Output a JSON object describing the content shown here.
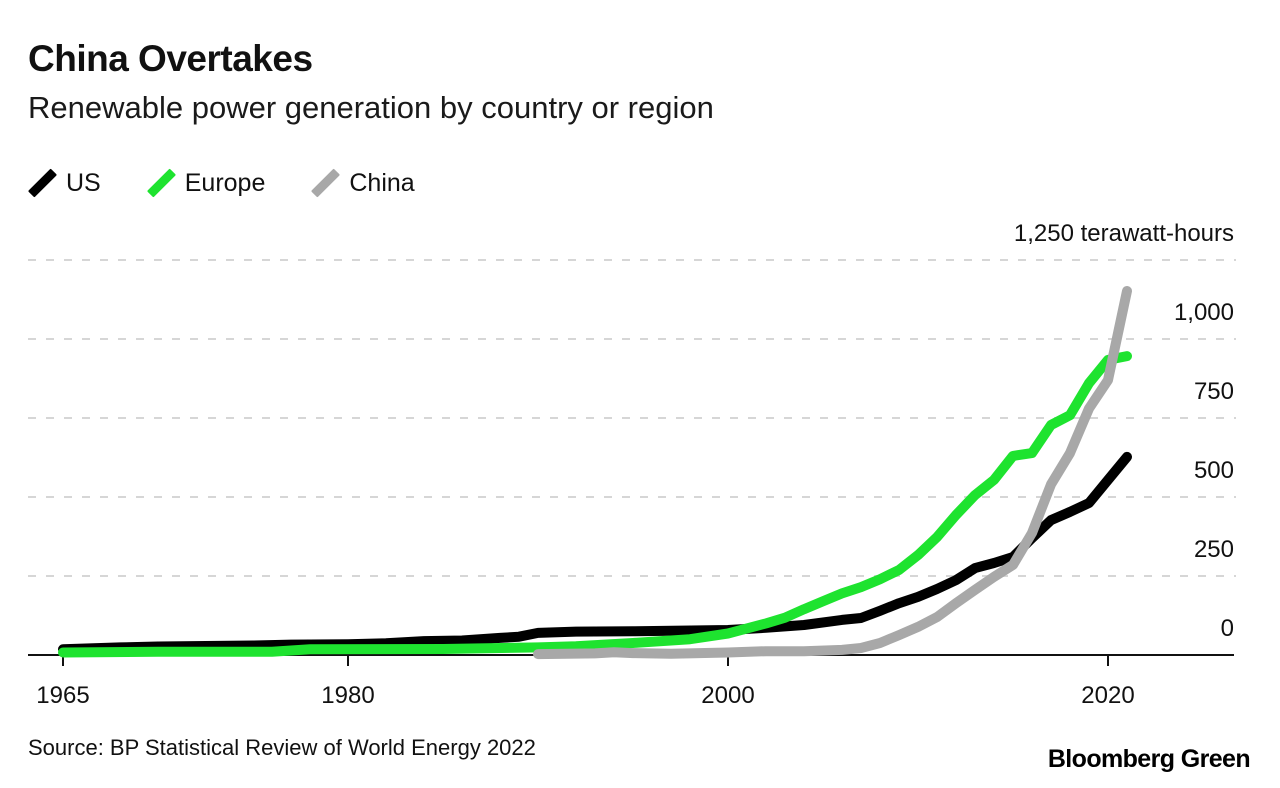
{
  "header": {
    "title": "China Overtakes",
    "subtitle": "Renewable power generation by country or region"
  },
  "legend": [
    {
      "label": "US",
      "color": "#000000"
    },
    {
      "label": "Europe",
      "color": "#1ee32f"
    },
    {
      "label": "China",
      "color": "#a8a8a8"
    }
  ],
  "footer": {
    "source": "Source: BP Statistical Review of World Energy 2022",
    "brand": "Bloomberg Green"
  },
  "chart_data": {
    "type": "line",
    "title": "China Overtakes",
    "subtitle": "Renewable power generation by country or region",
    "xlabel": "",
    "ylabel": "terawatt-hours",
    "unit_label": "1,250 terawatt-hours",
    "xlim": [
      1965,
      2021
    ],
    "ylim": [
      0,
      1250
    ],
    "x_ticks": [
      1965,
      1980,
      2000,
      2020
    ],
    "x_tick_labels": [
      "1965",
      "1980",
      "2000",
      "2020"
    ],
    "y_ticks": [
      0,
      250,
      500,
      750,
      1000,
      1250
    ],
    "y_tick_labels": [
      "0",
      "250",
      "500",
      "750",
      "1,000",
      "1,250 terawatt-hours"
    ],
    "grid": "horizontal dashed",
    "legend_position": "top-left",
    "y_axis_position": "right",
    "series": [
      {
        "name": "US",
        "color": "#000000",
        "points": [
          [
            1965,
            18
          ],
          [
            1968,
            24
          ],
          [
            1970,
            27
          ],
          [
            1975,
            30
          ],
          [
            1977,
            33
          ],
          [
            1980,
            34
          ],
          [
            1982,
            37
          ],
          [
            1984,
            44
          ],
          [
            1986,
            46
          ],
          [
            1988,
            54
          ],
          [
            1989,
            58
          ],
          [
            1990,
            70
          ],
          [
            1992,
            74
          ],
          [
            1995,
            75
          ],
          [
            2000,
            79
          ],
          [
            2002,
            86
          ],
          [
            2004,
            95
          ],
          [
            2006,
            111
          ],
          [
            2007,
            117
          ],
          [
            2008,
            140
          ],
          [
            2009,
            164
          ],
          [
            2010,
            184
          ],
          [
            2011,
            209
          ],
          [
            2012,
            237
          ],
          [
            2013,
            275
          ],
          [
            2014,
            291
          ],
          [
            2015,
            310
          ],
          [
            2016,
            370
          ],
          [
            2017,
            427
          ],
          [
            2018,
            453
          ],
          [
            2019,
            481
          ],
          [
            2020,
            554
          ],
          [
            2021,
            627
          ]
        ]
      },
      {
        "name": "Europe",
        "color": "#1ee32f",
        "points": [
          [
            1965,
            8
          ],
          [
            1970,
            10
          ],
          [
            1976,
            10
          ],
          [
            1978,
            18
          ],
          [
            1985,
            19
          ],
          [
            1990,
            24
          ],
          [
            1992,
            28
          ],
          [
            1995,
            38
          ],
          [
            1998,
            50
          ],
          [
            2000,
            68
          ],
          [
            2002,
            100
          ],
          [
            2003,
            118
          ],
          [
            2004,
            145
          ],
          [
            2005,
            170
          ],
          [
            2006,
            195
          ],
          [
            2007,
            215
          ],
          [
            2008,
            240
          ],
          [
            2009,
            269
          ],
          [
            2010,
            316
          ],
          [
            2011,
            373
          ],
          [
            2012,
            443
          ],
          [
            2013,
            506
          ],
          [
            2014,
            554
          ],
          [
            2015,
            630
          ],
          [
            2016,
            639
          ],
          [
            2017,
            728
          ],
          [
            2018,
            759
          ],
          [
            2019,
            860
          ],
          [
            2020,
            934
          ],
          [
            2021,
            946
          ]
        ]
      },
      {
        "name": "China",
        "color": "#a8a8a8",
        "points": [
          [
            1990,
            3
          ],
          [
            1993,
            5
          ],
          [
            1994,
            9
          ],
          [
            1995,
            6
          ],
          [
            1997,
            4
          ],
          [
            2000,
            8
          ],
          [
            2002,
            12
          ],
          [
            2004,
            12
          ],
          [
            2006,
            16
          ],
          [
            2007,
            22
          ],
          [
            2008,
            38
          ],
          [
            2009,
            63
          ],
          [
            2010,
            89
          ],
          [
            2011,
            120
          ],
          [
            2012,
            164
          ],
          [
            2013,
            206
          ],
          [
            2014,
            247
          ],
          [
            2015,
            285
          ],
          [
            2016,
            386
          ],
          [
            2017,
            540
          ],
          [
            2018,
            639
          ],
          [
            2019,
            780
          ],
          [
            2020,
            870
          ],
          [
            2021,
            1152
          ]
        ]
      }
    ]
  }
}
